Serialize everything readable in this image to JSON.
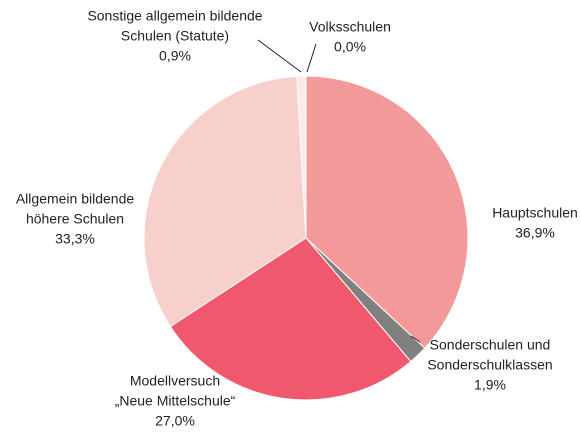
{
  "chart_data": {
    "type": "pie",
    "categories": [
      [
        "Volksschulen"
      ],
      [
        "Hauptschulen"
      ],
      [
        "Sonderschulen und",
        "Sonderschulklassen"
      ],
      [
        "Modellversuch",
        "„Neue Mittelschule“"
      ],
      [
        "Allgemein bildende",
        "höhere Schulen"
      ],
      [
        "Sonstige allgemein bildende",
        "Schulen (Statute)"
      ]
    ],
    "values": [
      0.0,
      36.9,
      1.9,
      27.0,
      33.3,
      0.9
    ],
    "value_labels": [
      "0,0%",
      "36,9%",
      "1,9%",
      "27,0%",
      "33,3%",
      "0,9%"
    ],
    "colors": [
      "#e6e6e6",
      "#f4999a",
      "#808080",
      "#f0596d",
      "#f8d0cb",
      "#fbeae7"
    ]
  }
}
